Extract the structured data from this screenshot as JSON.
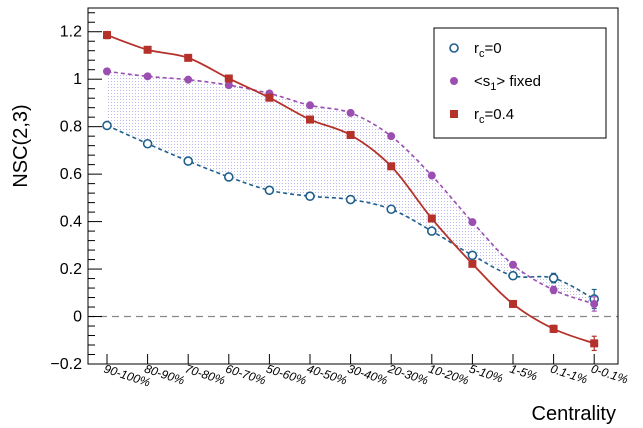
{
  "chart_data": {
    "type": "line",
    "title": "",
    "ylabel": "NSC(2,3)",
    "xlabel": "Centrality",
    "ylim": [
      -0.2,
      1.3
    ],
    "yticks": [
      -0.2,
      0,
      0.2,
      0.4,
      0.6,
      0.8,
      1,
      1.2
    ],
    "ytick_labels": [
      "−0.2",
      "0",
      "0.2",
      "0.4",
      "0.6",
      "0.8",
      "1",
      "1.2"
    ],
    "categories": [
      "90-100%",
      "80-90%",
      "70-80%",
      "60-70%",
      "50-60%",
      "40-50%",
      "30-40%",
      "20-30%",
      "10-20%",
      "5-10%",
      "1-5%",
      "0.1-1%",
      "0-0.1%"
    ],
    "reference_line": 0,
    "grid": false,
    "legend_position": "top-right",
    "band_between_series": [
      0,
      1
    ],
    "series": [
      {
        "name": "r_c=0",
        "legend_main": "r",
        "legend_sub": "c",
        "legend_rest": "=0",
        "marker": "open-circle",
        "color": "#1f5f8b",
        "line_style": "dashed",
        "values": [
          0.805,
          0.728,
          0.655,
          0.588,
          0.532,
          0.507,
          0.493,
          0.452,
          0.36,
          0.258,
          0.172,
          0.162,
          0.074
        ],
        "errors": [
          0.01,
          0.01,
          0.01,
          0.01,
          0.01,
          0.01,
          0.01,
          0.012,
          0.012,
          0.012,
          0.015,
          0.02,
          0.04
        ]
      },
      {
        "name": "<s_1> fixed",
        "legend_main": "<s",
        "legend_sub": "1",
        "legend_rest": "> fixed",
        "marker": "circle",
        "color": "#9b4fb0",
        "line_style": "dashed",
        "values": [
          1.033,
          1.012,
          0.998,
          0.975,
          0.94,
          0.89,
          0.858,
          0.76,
          0.594,
          0.398,
          0.218,
          0.112,
          0.053
        ],
        "errors": [
          0.008,
          0.008,
          0.008,
          0.008,
          0.008,
          0.008,
          0.008,
          0.01,
          0.01,
          0.01,
          0.012,
          0.015,
          0.03
        ]
      },
      {
        "name": "r_c=0.4",
        "legend_main": "r",
        "legend_sub": "c",
        "legend_rest": "=0.4",
        "marker": "square",
        "color": "#b5322a",
        "line_style": "solid",
        "values": [
          1.186,
          1.124,
          1.09,
          1.003,
          0.922,
          0.83,
          0.765,
          0.633,
          0.413,
          0.222,
          0.053,
          -0.052,
          -0.113
        ],
        "errors": [
          0.015,
          0.012,
          0.01,
          0.01,
          0.01,
          0.01,
          0.01,
          0.012,
          0.012,
          0.012,
          0.012,
          0.015,
          0.03
        ]
      }
    ]
  }
}
